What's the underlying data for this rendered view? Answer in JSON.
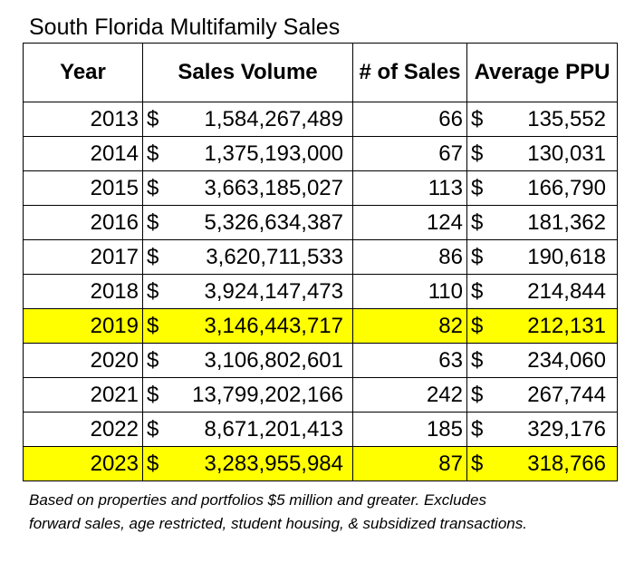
{
  "title": "South Florida Multifamily Sales",
  "headers": [
    "Year",
    "Sales Volume",
    "# of Sales",
    "Average PPU"
  ],
  "currency_symbol": "$",
  "highlight_color": "#ffff00",
  "rows": [
    {
      "year": "2013",
      "volume": "1,584,267,489",
      "count": "66",
      "ppu": "135,552",
      "highlight": false
    },
    {
      "year": "2014",
      "volume": "1,375,193,000",
      "count": "67",
      "ppu": "130,031",
      "highlight": false
    },
    {
      "year": "2015",
      "volume": "3,663,185,027",
      "count": "113",
      "ppu": "166,790",
      "highlight": false
    },
    {
      "year": "2016",
      "volume": "5,326,634,387",
      "count": "124",
      "ppu": "181,362",
      "highlight": false
    },
    {
      "year": "2017",
      "volume": "3,620,711,533",
      "count": "86",
      "ppu": "190,618",
      "highlight": false
    },
    {
      "year": "2018",
      "volume": "3,924,147,473",
      "count": "110",
      "ppu": "214,844",
      "highlight": false
    },
    {
      "year": "2019",
      "volume": "3,146,443,717",
      "count": "82",
      "ppu": "212,131",
      "highlight": true
    },
    {
      "year": "2020",
      "volume": "3,106,802,601",
      "count": "63",
      "ppu": "234,060",
      "highlight": false
    },
    {
      "year": "2021",
      "volume": "13,799,202,166",
      "count": "242",
      "ppu": "267,744",
      "highlight": false
    },
    {
      "year": "2022",
      "volume": "8,671,201,413",
      "count": "185",
      "ppu": "329,176",
      "highlight": false
    },
    {
      "year": "2023",
      "volume": "3,283,955,984",
      "count": "87",
      "ppu": "318,766",
      "highlight": true
    }
  ],
  "footnote": {
    "line1": "Based on properties and portfolios $5 million and greater. Excludes",
    "line2": "forward sales, age restricted, student housing, & subsidized transactions."
  }
}
